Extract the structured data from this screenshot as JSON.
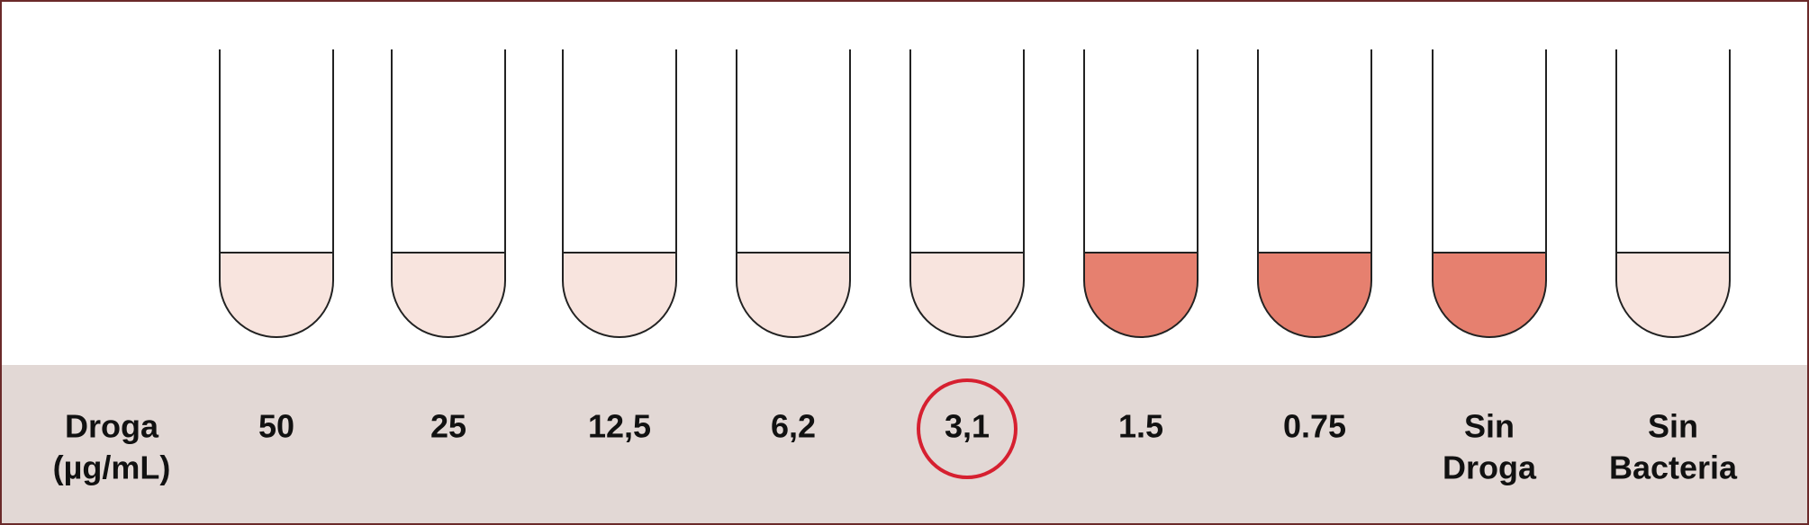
{
  "row_label": [
    "Droga",
    "(µg/mL)"
  ],
  "tubes": [
    {
      "label": [
        "50"
      ],
      "color": "#f8e4de",
      "highlighted": false
    },
    {
      "label": [
        "25"
      ],
      "color": "#f8e4de",
      "highlighted": false
    },
    {
      "label": [
        "12,5"
      ],
      "color": "#f8e4de",
      "highlighted": false
    },
    {
      "label": [
        "6,2"
      ],
      "color": "#f8e4de",
      "highlighted": false
    },
    {
      "label": [
        "3,1"
      ],
      "color": "#f8e4de",
      "highlighted": true
    },
    {
      "label": [
        "1.5"
      ],
      "color": "#e6806f",
      "highlighted": false
    },
    {
      "label": [
        "0.75"
      ],
      "color": "#e6806f",
      "highlighted": false
    },
    {
      "label": [
        "Sin",
        "Droga"
      ],
      "color": "#e6806f",
      "highlighted": false
    },
    {
      "label": [
        "Sin",
        "Bacteria"
      ],
      "color": "#f8e4de",
      "highlighted": false
    }
  ]
}
